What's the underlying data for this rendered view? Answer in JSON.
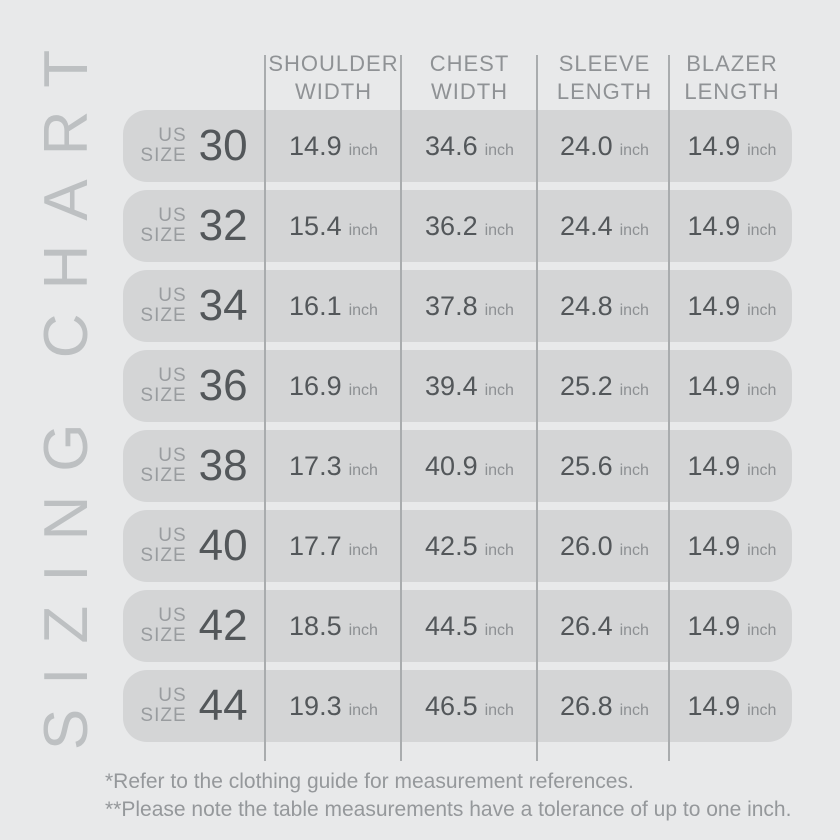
{
  "title": {
    "vertical_label": "SIZING CHART"
  },
  "table": {
    "unit": "inch",
    "size_prefix": {
      "line1": "US",
      "line2": "SIZE"
    },
    "columns": [
      {
        "line1": "SHOULDER",
        "line2": "WIDTH"
      },
      {
        "line1": "CHEST",
        "line2": "WIDTH"
      },
      {
        "line1": "SLEEVE",
        "line2": "LENGTH"
      },
      {
        "line1": "BLAZER",
        "line2": "LENGTH"
      }
    ],
    "rows": [
      {
        "size": "30",
        "shoulder_width": "14.9",
        "chest_width": "34.6",
        "sleeve_length": "24.0",
        "blazer_length": "14.9"
      },
      {
        "size": "32",
        "shoulder_width": "15.4",
        "chest_width": "36.2",
        "sleeve_length": "24.4",
        "blazer_length": "14.9"
      },
      {
        "size": "34",
        "shoulder_width": "16.1",
        "chest_width": "37.8",
        "sleeve_length": "24.8",
        "blazer_length": "14.9"
      },
      {
        "size": "36",
        "shoulder_width": "16.9",
        "chest_width": "39.4",
        "sleeve_length": "25.2",
        "blazer_length": "14.9"
      },
      {
        "size": "38",
        "shoulder_width": "17.3",
        "chest_width": "40.9",
        "sleeve_length": "25.6",
        "blazer_length": "14.9"
      },
      {
        "size": "40",
        "shoulder_width": "17.7",
        "chest_width": "42.5",
        "sleeve_length": "26.0",
        "blazer_length": "14.9"
      },
      {
        "size": "42",
        "shoulder_width": "18.5",
        "chest_width": "44.5",
        "sleeve_length": "26.4",
        "blazer_length": "14.9"
      },
      {
        "size": "44",
        "shoulder_width": "19.3",
        "chest_width": "46.5",
        "sleeve_length": "26.8",
        "blazer_length": "14.9"
      }
    ]
  },
  "footnotes": {
    "note1": "*Refer to the clothing guide for measurement references.",
    "note2": "**Please note the table measurements have a tolerance of up to one inch."
  },
  "colors": {
    "background": "#e8e9ea",
    "row_pill": "#d4d5d6",
    "dark_text": "#53575a",
    "mid_gray_text": "#95989b",
    "light_title": "#bdc0c2",
    "divider": "#a9acae"
  },
  "chart_data": {
    "type": "table",
    "title": "SIZING CHART",
    "unit": "inch",
    "columns": [
      "US SIZE",
      "SHOULDER WIDTH",
      "CHEST WIDTH",
      "SLEEVE LENGTH",
      "BLAZER LENGTH"
    ],
    "rows": [
      [
        30,
        14.9,
        34.6,
        24.0,
        14.9
      ],
      [
        32,
        15.4,
        36.2,
        24.4,
        14.9
      ],
      [
        34,
        16.1,
        37.8,
        24.8,
        14.9
      ],
      [
        36,
        16.9,
        39.4,
        25.2,
        14.9
      ],
      [
        38,
        17.3,
        40.9,
        25.6,
        14.9
      ],
      [
        40,
        17.7,
        42.5,
        26.0,
        14.9
      ],
      [
        42,
        18.5,
        44.5,
        26.4,
        14.9
      ],
      [
        44,
        19.3,
        46.5,
        26.8,
        14.9
      ]
    ],
    "notes": [
      "*Refer to the clothing guide for measurement references.",
      "**Please note the table measurements have a tolerance of up to one inch."
    ],
    "layout": "rows are rounded gray pills; 4 vertical divider lines separate columns; title rotated -90deg on left edge"
  }
}
